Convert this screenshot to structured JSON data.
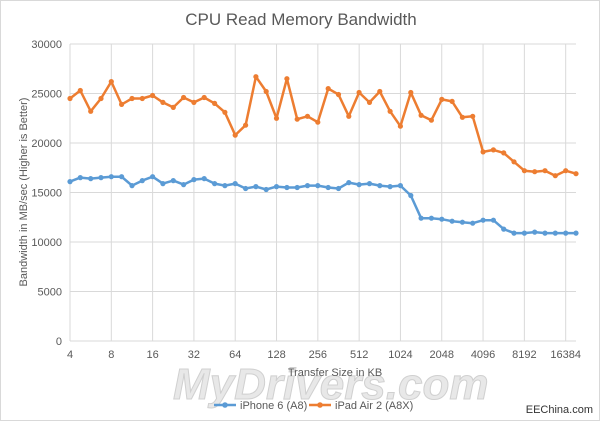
{
  "chart_data": {
    "type": "line",
    "title": "CPU Read Memory Bandwidth",
    "xlabel": "Transfer Size in KB",
    "ylabel": "Bandwidth in MB/sec (Higher is Better)",
    "ylim": [
      0,
      30000
    ],
    "yticks": [
      0,
      5000,
      10000,
      15000,
      20000,
      25000,
      30000
    ],
    "x_tick_labels": [
      "4",
      "8",
      "16",
      "32",
      "64",
      "128",
      "256",
      "512",
      "1024",
      "2048",
      "4096",
      "8192",
      "16384"
    ],
    "x_tick_index": [
      0,
      4,
      8,
      12,
      16,
      20,
      24,
      28,
      32,
      36,
      40,
      44,
      48
    ],
    "grid": "vertical-and-horizontal",
    "legend_position": "bottom",
    "series": [
      {
        "name": "iPhone 6 (A8)",
        "color": "#5b9bd5",
        "values": [
          16100,
          16500,
          16400,
          16500,
          16600,
          16600,
          15700,
          16200,
          16600,
          15900,
          16200,
          15800,
          16300,
          16400,
          15900,
          15700,
          15900,
          15400,
          15600,
          15300,
          15600,
          15500,
          15500,
          15700,
          15700,
          15500,
          15400,
          16000,
          15800,
          15900,
          15700,
          15600,
          15700,
          14700,
          12400,
          12400,
          12300,
          12100,
          12000,
          11900,
          12200,
          12200,
          11300,
          10900,
          10900,
          11000,
          10900,
          10900,
          10900,
          10900
        ]
      },
      {
        "name": "iPad Air 2 (A8X)",
        "color": "#ed7d31",
        "values": [
          24500,
          25300,
          23200,
          24500,
          26200,
          23900,
          24500,
          24500,
          24800,
          24100,
          23600,
          24600,
          24100,
          24600,
          24000,
          23100,
          20800,
          21800,
          26700,
          25200,
          22500,
          26500,
          22400,
          22700,
          22100,
          25500,
          24900,
          22700,
          25100,
          24100,
          25200,
          23200,
          21700,
          25100,
          22800,
          22300,
          24400,
          24200,
          22600,
          22700,
          19100,
          19300,
          19000,
          18100,
          17200,
          17100,
          17200,
          16700,
          17200,
          16900
        ]
      }
    ]
  },
  "watermark": "MyDrivers.com",
  "source_label": "EEChina.com"
}
